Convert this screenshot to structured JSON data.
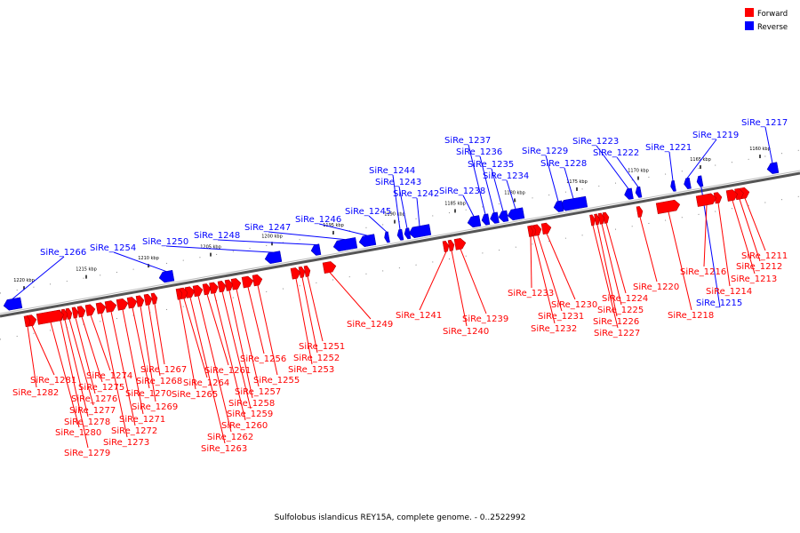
{
  "legend": {
    "forward": {
      "label": "Forward",
      "color": "#ff0000"
    },
    "reverse": {
      "label": "Reverse",
      "color": "#0000ff"
    }
  },
  "caption": "Sulfolobus islandicus REY15A, complete genome. - 0..2522992",
  "ticks": [
    "1160 kbp",
    "1165 kbp",
    "1170 kbp",
    "1175 kbp",
    "1180 kbp",
    "1185 kbp",
    "1190 kbp",
    "1195 kbp",
    "1200 kbp",
    "1205 kbp",
    "1210 kbp",
    "1215 kbp",
    "1220 kbp"
  ],
  "genes": [
    {
      "name": "SiRe_1211",
      "strand": "forward"
    },
    {
      "name": "SiRe_1212",
      "strand": "forward"
    },
    {
      "name": "SiRe_1213",
      "strand": "forward"
    },
    {
      "name": "SiRe_1214",
      "strand": "forward"
    },
    {
      "name": "SiRe_1215",
      "strand": "reverse"
    },
    {
      "name": "SiRe_1216",
      "strand": "forward"
    },
    {
      "name": "SiRe_1217",
      "strand": "reverse"
    },
    {
      "name": "SiRe_1218",
      "strand": "forward"
    },
    {
      "name": "SiRe_1219",
      "strand": "reverse"
    },
    {
      "name": "SiRe_1220",
      "strand": "forward"
    },
    {
      "name": "SiRe_1221",
      "strand": "reverse"
    },
    {
      "name": "SiRe_1222",
      "strand": "reverse"
    },
    {
      "name": "SiRe_1223",
      "strand": "reverse"
    },
    {
      "name": "SiRe_1224",
      "strand": "forward"
    },
    {
      "name": "SiRe_1225",
      "strand": "forward"
    },
    {
      "name": "SiRe_1226",
      "strand": "forward"
    },
    {
      "name": "SiRe_1227",
      "strand": "forward"
    },
    {
      "name": "SiRe_1228",
      "strand": "reverse"
    },
    {
      "name": "SiRe_1229",
      "strand": "reverse"
    },
    {
      "name": "SiRe_1230",
      "strand": "forward"
    },
    {
      "name": "SiRe_1231",
      "strand": "forward"
    },
    {
      "name": "SiRe_1232",
      "strand": "forward"
    },
    {
      "name": "SiRe_1233",
      "strand": "forward"
    },
    {
      "name": "SiRe_1234",
      "strand": "reverse"
    },
    {
      "name": "SiRe_1235",
      "strand": "reverse"
    },
    {
      "name": "SiRe_1236",
      "strand": "reverse"
    },
    {
      "name": "SiRe_1237",
      "strand": "reverse"
    },
    {
      "name": "SiRe_1238",
      "strand": "reverse"
    },
    {
      "name": "SiRe_1239",
      "strand": "forward"
    },
    {
      "name": "SiRe_1240",
      "strand": "forward"
    },
    {
      "name": "SiRe_1241",
      "strand": "forward"
    },
    {
      "name": "SiRe_1242",
      "strand": "reverse"
    },
    {
      "name": "SiRe_1243",
      "strand": "reverse"
    },
    {
      "name": "SiRe_1244",
      "strand": "reverse"
    },
    {
      "name": "SiRe_1245",
      "strand": "reverse"
    },
    {
      "name": "SiRe_1246",
      "strand": "reverse"
    },
    {
      "name": "SiRe_1247",
      "strand": "reverse"
    },
    {
      "name": "SiRe_1248",
      "strand": "reverse"
    },
    {
      "name": "SiRe_1249",
      "strand": "forward"
    },
    {
      "name": "SiRe_1250",
      "strand": "reverse"
    },
    {
      "name": "SiRe_1251",
      "strand": "forward"
    },
    {
      "name": "SiRe_1252",
      "strand": "forward"
    },
    {
      "name": "SiRe_1253",
      "strand": "forward"
    },
    {
      "name": "SiRe_1254",
      "strand": "reverse"
    },
    {
      "name": "SiRe_1255",
      "strand": "forward"
    },
    {
      "name": "SiRe_1256",
      "strand": "forward"
    },
    {
      "name": "SiRe_1257",
      "strand": "forward"
    },
    {
      "name": "SiRe_1258",
      "strand": "forward"
    },
    {
      "name": "SiRe_1259",
      "strand": "forward"
    },
    {
      "name": "SiRe_1260",
      "strand": "forward"
    },
    {
      "name": "SiRe_1261",
      "strand": "forward"
    },
    {
      "name": "SiRe_1262",
      "strand": "forward"
    },
    {
      "name": "SiRe_1263",
      "strand": "forward"
    },
    {
      "name": "SiRe_1264",
      "strand": "forward"
    },
    {
      "name": "SiRe_1265",
      "strand": "forward"
    },
    {
      "name": "SiRe_1266",
      "strand": "reverse"
    },
    {
      "name": "SiRe_1267",
      "strand": "forward"
    },
    {
      "name": "SiRe_1268",
      "strand": "forward"
    },
    {
      "name": "SiRe_1269",
      "strand": "forward"
    },
    {
      "name": "SiRe_1270",
      "strand": "forward"
    },
    {
      "name": "SiRe_1271",
      "strand": "forward"
    },
    {
      "name": "SiRe_1272",
      "strand": "forward"
    },
    {
      "name": "SiRe_1273",
      "strand": "forward"
    },
    {
      "name": "SiRe_1274",
      "strand": "forward"
    },
    {
      "name": "SiRe_1275",
      "strand": "forward"
    },
    {
      "name": "SiRe_1276",
      "strand": "forward"
    },
    {
      "name": "SiRe_1277",
      "strand": "forward"
    },
    {
      "name": "SiRe_1278",
      "strand": "forward"
    },
    {
      "name": "SiRe_1279",
      "strand": "forward"
    },
    {
      "name": "SiRe_1280",
      "strand": "forward"
    },
    {
      "name": "SiRe_1281",
      "strand": "forward"
    },
    {
      "name": "SiRe_1282",
      "strand": "forward"
    }
  ]
}
